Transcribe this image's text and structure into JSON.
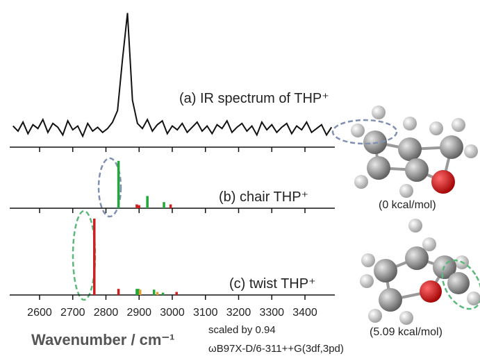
{
  "chart_data": [
    {
      "type": "line",
      "title": "(a) IR spectrum of THP⁺",
      "color": "#111111",
      "x": [
        2520,
        2535,
        2550,
        2565,
        2580,
        2595,
        2610,
        2625,
        2640,
        2655,
        2670,
        2685,
        2700,
        2715,
        2730,
        2745,
        2760,
        2775,
        2790,
        2805,
        2820,
        2835,
        2850,
        2865,
        2880,
        2895,
        2910,
        2925,
        2940,
        2955,
        2970,
        2985,
        3000,
        3015,
        3030,
        3045,
        3060,
        3075,
        3090,
        3105,
        3120,
        3135,
        3150,
        3165,
        3180,
        3195,
        3210,
        3225,
        3240,
        3255,
        3270,
        3285,
        3300,
        3315,
        3330,
        3345,
        3360,
        3375,
        3390,
        3405,
        3420,
        3435,
        3450,
        3465,
        3480
      ],
      "values": [
        0.1,
        0.06,
        0.13,
        0.04,
        0.11,
        0.08,
        0.15,
        0.05,
        0.12,
        0.09,
        0.03,
        0.14,
        0.07,
        0.1,
        0.02,
        0.12,
        0.06,
        0.09,
        0.05,
        0.08,
        0.13,
        0.22,
        0.62,
        0.98,
        0.3,
        0.12,
        0.08,
        0.15,
        0.06,
        0.11,
        0.14,
        0.04,
        0.1,
        0.07,
        0.12,
        0.05,
        0.09,
        0.13,
        0.06,
        0.1,
        0.04,
        0.11,
        0.08,
        0.14,
        0.05,
        0.09,
        0.12,
        0.06,
        0.1,
        0.03,
        0.13,
        0.07,
        0.11,
        0.05,
        0.09,
        0.12,
        0.04,
        0.1,
        0.07,
        0.13,
        0.05,
        0.08,
        0.11,
        0.03,
        0.09
      ],
      "xlim": [
        2510,
        3490
      ],
      "ylim": [
        0,
        1
      ],
      "xticks": [
        2600,
        2700,
        2800,
        2900,
        3000,
        3100,
        3200,
        3300,
        3400
      ],
      "show_tick_labels": false
    },
    {
      "type": "stick",
      "title": "(b) chair THP⁺",
      "x": [
        2838,
        2893,
        2900,
        2925,
        2975,
        2995
      ],
      "values": [
        62,
        5,
        4,
        16,
        8,
        5
      ],
      "colors": [
        "#22a83a",
        "#cc1f1f",
        "#cc1f1f",
        "#22a83a",
        "#22a83a",
        "#cc1f1f"
      ],
      "xlim": [
        2510,
        3490
      ],
      "ylim": [
        0,
        100
      ],
      "xticks": [
        2600,
        2700,
        2800,
        2900,
        3000,
        3100,
        3200,
        3300,
        3400
      ],
      "show_tick_labels": false
    },
    {
      "type": "stick",
      "title": "(c) twist THP⁺",
      "x": [
        2765,
        2838,
        2893,
        2898,
        2903,
        2945,
        2955,
        2972,
        3013
      ],
      "values": [
        100,
        8,
        8,
        8,
        7,
        7,
        4,
        3,
        4
      ],
      "colors": [
        "#cc1f1f",
        "#cc1f1f",
        "#22a83a",
        "#22a83a",
        "#e0a030",
        "#22a83a",
        "#e0a030",
        "#22a83a",
        "#cc1f1f"
      ],
      "xlim": [
        2510,
        3490
      ],
      "ylim": [
        0,
        100
      ],
      "xticks": [
        2600,
        2700,
        2800,
        2900,
        3000,
        3100,
        3200,
        3300,
        3400
      ],
      "show_tick_labels": true,
      "xlabel": "Wavenumber / cm⁻¹"
    }
  ],
  "notes": [
    "scaled by 0.94",
    "ωB97X-D/6-311++G(3df,3pd)"
  ],
  "structures": [
    {
      "label": "(0 kcal/mol)"
    },
    {
      "label": "(5.09 kcal/mol)"
    }
  ]
}
